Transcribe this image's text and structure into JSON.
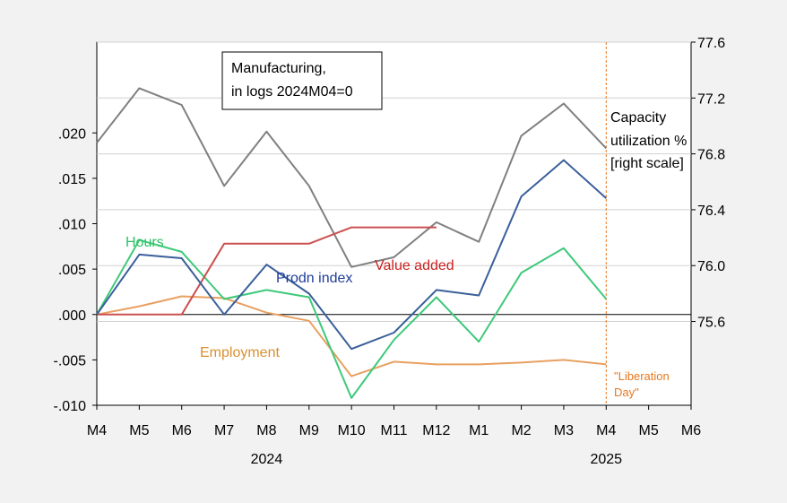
{
  "chart_data": {
    "type": "line",
    "title_box": [
      "Manufacturing,",
      "in logs 2024M04=0"
    ],
    "x_tick_labels": [
      "M4",
      "M5",
      "M6",
      "M7",
      "M8",
      "M9",
      "M10",
      "M11",
      "M12",
      "M1",
      "M2",
      "M3",
      "M4",
      "M5",
      "M6"
    ],
    "x_year_labels": [
      {
        "label": "2024",
        "tick_index": 4
      },
      {
        "label": "2025",
        "tick_index": 12
      }
    ],
    "y_left": {
      "ylim": [
        -0.01,
        0.03
      ],
      "ticks": [
        -0.01,
        -0.005,
        0.0,
        0.005,
        0.01,
        0.015,
        0.02
      ],
      "tick_labels": [
        "-.010",
        "-.005",
        ".000",
        ".005",
        ".010",
        ".015",
        ".020"
      ]
    },
    "y_right": {
      "ylim": [
        75.0,
        77.6
      ],
      "ticks": [
        75.6,
        76.0,
        76.4,
        76.8,
        77.2,
        77.6
      ],
      "tick_labels": [
        "75.6",
        "76.0",
        "76.4",
        "76.8",
        "77.2",
        "77.6"
      ]
    },
    "series": [
      {
        "name": "Capacity utilization % [right scale]",
        "label_lines": [
          "Capacity",
          "utilization %",
          "[right scale]"
        ],
        "axis": "right",
        "color": "#808080",
        "values": [
          76.88,
          77.27,
          77.15,
          76.57,
          76.96,
          76.57,
          75.99,
          76.06,
          76.31,
          76.17,
          76.93,
          77.16,
          76.84
        ]
      },
      {
        "name": "Prodn index",
        "axis": "left",
        "color": "#3a5f9a",
        "values": [
          0.0,
          0.0066,
          0.0062,
          0.0,
          0.0055,
          0.0023,
          -0.0038,
          -0.002,
          0.0027,
          0.0021,
          0.013,
          0.017,
          0.0128
        ]
      },
      {
        "name": "Hours",
        "axis": "left",
        "color": "#3ec97a",
        "values": [
          0.0,
          0.0082,
          0.0069,
          0.0017,
          0.0027,
          0.0019,
          -0.0092,
          -0.0028,
          0.0019,
          -0.003,
          0.0046,
          0.0073,
          0.0017
        ]
      },
      {
        "name": "Employment",
        "axis": "left",
        "color": "#e8a060",
        "values": [
          0.0,
          0.0009,
          0.002,
          0.0018,
          0.0002,
          -0.0007,
          -0.0068,
          -0.0052,
          -0.0055,
          -0.0055,
          -0.0053,
          -0.005,
          -0.0055
        ]
      },
      {
        "name": "Value added",
        "axis": "left",
        "color": "#cc5050",
        "values": [
          0.0,
          0.0,
          0.0,
          0.0078,
          0.0078,
          0.0078,
          0.0096,
          0.0096,
          0.0096
        ]
      }
    ],
    "annotation": {
      "lines": [
        "\"Liberation",
        "Day\""
      ],
      "tick_index": 12,
      "color": "#e67820"
    },
    "label_colors": {
      "Hours": "#2cc264",
      "Prodn index": "#1f3d99",
      "Value added": "#cc2020",
      "Employment": "#d89030",
      "Capacity utilization % [right scale]": "#000000"
    },
    "zero_line": true,
    "grid": "horizontal"
  }
}
